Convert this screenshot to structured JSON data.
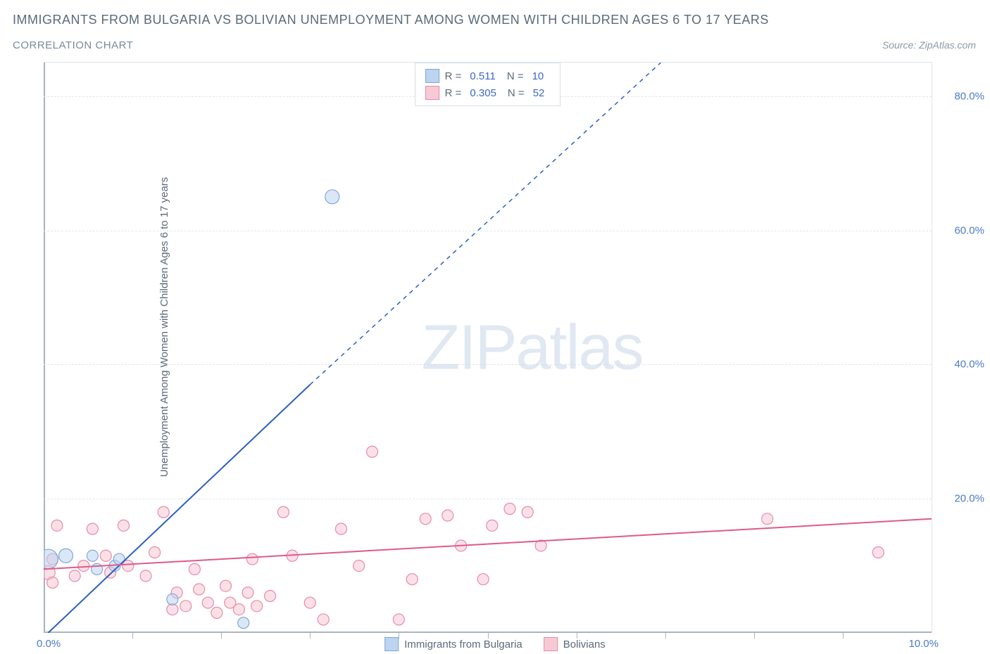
{
  "title": "IMMIGRANTS FROM BULGARIA VS BOLIVIAN UNEMPLOYMENT AMONG WOMEN WITH CHILDREN AGES 6 TO 17 YEARS",
  "subtitle": "CORRELATION CHART",
  "source": "Source: ZipAtlas.com",
  "y_axis_label": "Unemployment Among Women with Children Ages 6 to 17 years",
  "watermark_bold": "ZIP",
  "watermark_thin": "atlas",
  "chart": {
    "type": "scatter",
    "background_color": "#ffffff",
    "grid_color": "#e0e6ec",
    "axis_color": "#a8b4c0",
    "tick_label_color": "#4a7bc8",
    "xlim": [
      0,
      10
    ],
    "ylim": [
      0,
      85
    ],
    "x_origin_label": "0.0%",
    "x_end_label": "10.0%",
    "x_ticks": [
      1,
      2,
      3,
      4,
      5,
      6,
      7,
      8,
      9
    ],
    "y_ticks": [
      {
        "value": 20,
        "label": "20.0%"
      },
      {
        "value": 40,
        "label": "40.0%"
      },
      {
        "value": 60,
        "label": "60.0%"
      },
      {
        "value": 80,
        "label": "80.0%"
      }
    ],
    "series": [
      {
        "name": "Immigrants from Bulgaria",
        "color_fill": "#bcd4f0",
        "color_stroke": "#7fa8d8",
        "swatch_fill": "#bcd4f0",
        "swatch_border": "#7fa8d8",
        "R": "0.511",
        "N": "10",
        "marker_radius": 8,
        "trend": {
          "solid": {
            "x1": 0.05,
            "y1": 0.0,
            "x2": 3.0,
            "y2": 37.0
          },
          "dashed": {
            "x1": 3.0,
            "y1": 37.0,
            "x2": 6.95,
            "y2": 85.0
          },
          "color": "#2c5fbf",
          "width": 2
        },
        "points": [
          {
            "x": 0.05,
            "y": 11.0,
            "r": 14
          },
          {
            "x": 0.25,
            "y": 11.5,
            "r": 10
          },
          {
            "x": 0.55,
            "y": 11.5,
            "r": 8
          },
          {
            "x": 0.6,
            "y": 9.5,
            "r": 8
          },
          {
            "x": 0.8,
            "y": 10.0,
            "r": 8
          },
          {
            "x": 0.85,
            "y": 11.0,
            "r": 8
          },
          {
            "x": 1.45,
            "y": 5.0,
            "r": 8
          },
          {
            "x": 2.25,
            "y": 1.5,
            "r": 8
          },
          {
            "x": 3.25,
            "y": 65.0,
            "r": 10
          }
        ]
      },
      {
        "name": "Bolivians",
        "color_fill": "#f7c9d4",
        "color_stroke": "#e78ba6",
        "swatch_fill": "#f7c9d4",
        "swatch_border": "#e78ba6",
        "R": "0.305",
        "N": "52",
        "marker_radius": 8,
        "trend": {
          "solid": {
            "x1": 0.0,
            "y1": 9.5,
            "x2": 10.0,
            "y2": 17.0
          },
          "color": "#e05a8a",
          "width": 2
        },
        "points": [
          {
            "x": 0.05,
            "y": 9.0,
            "r": 10
          },
          {
            "x": 0.1,
            "y": 11.0,
            "r": 8
          },
          {
            "x": 0.1,
            "y": 7.5,
            "r": 8
          },
          {
            "x": 0.15,
            "y": 16.0,
            "r": 8
          },
          {
            "x": 0.35,
            "y": 8.5,
            "r": 8
          },
          {
            "x": 0.45,
            "y": 10.0,
            "r": 8
          },
          {
            "x": 0.55,
            "y": 15.5,
            "r": 8
          },
          {
            "x": 0.7,
            "y": 11.5,
            "r": 8
          },
          {
            "x": 0.75,
            "y": 9.0,
            "r": 8
          },
          {
            "x": 0.9,
            "y": 16.0,
            "r": 8
          },
          {
            "x": 0.95,
            "y": 10.0,
            "r": 8
          },
          {
            "x": 1.15,
            "y": 8.5,
            "r": 8
          },
          {
            "x": 1.25,
            "y": 12.0,
            "r": 8
          },
          {
            "x": 1.35,
            "y": 18.0,
            "r": 8
          },
          {
            "x": 1.45,
            "y": 3.5,
            "r": 8
          },
          {
            "x": 1.5,
            "y": 6.0,
            "r": 8
          },
          {
            "x": 1.6,
            "y": 4.0,
            "r": 8
          },
          {
            "x": 1.7,
            "y": 9.5,
            "r": 8
          },
          {
            "x": 1.75,
            "y": 6.5,
            "r": 8
          },
          {
            "x": 1.85,
            "y": 4.5,
            "r": 8
          },
          {
            "x": 1.95,
            "y": 3.0,
            "r": 8
          },
          {
            "x": 2.05,
            "y": 7.0,
            "r": 8
          },
          {
            "x": 2.1,
            "y": 4.5,
            "r": 8
          },
          {
            "x": 2.2,
            "y": 3.5,
            "r": 8
          },
          {
            "x": 2.3,
            "y": 6.0,
            "r": 8
          },
          {
            "x": 2.35,
            "y": 11.0,
            "r": 8
          },
          {
            "x": 2.4,
            "y": 4.0,
            "r": 8
          },
          {
            "x": 2.55,
            "y": 5.5,
            "r": 8
          },
          {
            "x": 2.7,
            "y": 18.0,
            "r": 8
          },
          {
            "x": 2.8,
            "y": 11.5,
            "r": 8
          },
          {
            "x": 3.0,
            "y": 4.5,
            "r": 8
          },
          {
            "x": 3.15,
            "y": 2.0,
            "r": 8
          },
          {
            "x": 3.35,
            "y": 15.5,
            "r": 8
          },
          {
            "x": 3.55,
            "y": 10.0,
            "r": 8
          },
          {
            "x": 3.7,
            "y": 27.0,
            "r": 8
          },
          {
            "x": 4.0,
            "y": 2.0,
            "r": 8
          },
          {
            "x": 4.15,
            "y": 8.0,
            "r": 8
          },
          {
            "x": 4.3,
            "y": 17.0,
            "r": 8
          },
          {
            "x": 4.55,
            "y": 17.5,
            "r": 8
          },
          {
            "x": 4.7,
            "y": 13.0,
            "r": 8
          },
          {
            "x": 4.95,
            "y": 8.0,
            "r": 8
          },
          {
            "x": 5.05,
            "y": 16.0,
            "r": 8
          },
          {
            "x": 5.25,
            "y": 18.5,
            "r": 8
          },
          {
            "x": 5.45,
            "y": 18.0,
            "r": 8
          },
          {
            "x": 5.6,
            "y": 13.0,
            "r": 8
          },
          {
            "x": 8.15,
            "y": 17.0,
            "r": 8
          },
          {
            "x": 9.4,
            "y": 12.0,
            "r": 8
          }
        ]
      }
    ],
    "legend_labels": {
      "R": "R =",
      "N": "N ="
    }
  }
}
